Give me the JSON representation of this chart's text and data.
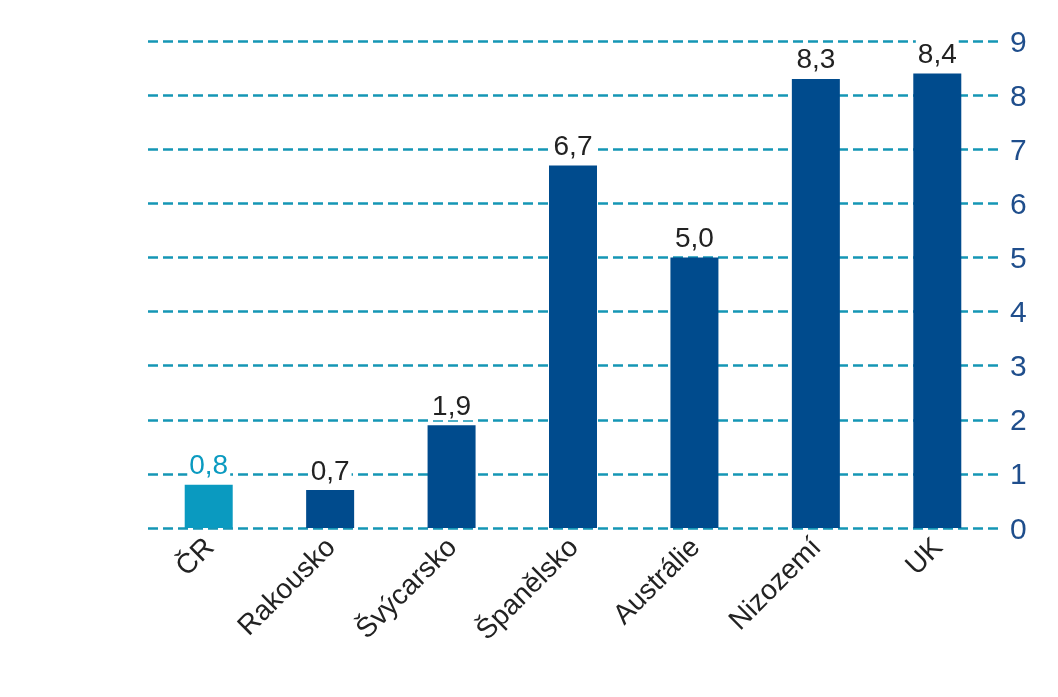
{
  "chart_data": {
    "type": "bar",
    "categories": [
      "ČR",
      "Rakousko",
      "Švýcarsko",
      "Španělsko",
      "Austrálie",
      "Nizozemí",
      "UK"
    ],
    "values": [
      0.8,
      0.7,
      1.9,
      6.7,
      5.0,
      8.3,
      8.4
    ],
    "colors": [
      "#0a9ac0",
      "#004b8d",
      "#004b8d",
      "#004b8d",
      "#004b8d",
      "#004b8d",
      "#004b8d"
    ],
    "value_labels": [
      "0,8",
      "0,7",
      "1,9",
      "6,7",
      "5,0",
      "8,3",
      "8,4"
    ],
    "ylim": [
      0,
      9
    ],
    "yticks": [
      0,
      1,
      2,
      3,
      4,
      5,
      6,
      7,
      8,
      9
    ],
    "grid": "y",
    "line_style": "dashed"
  }
}
